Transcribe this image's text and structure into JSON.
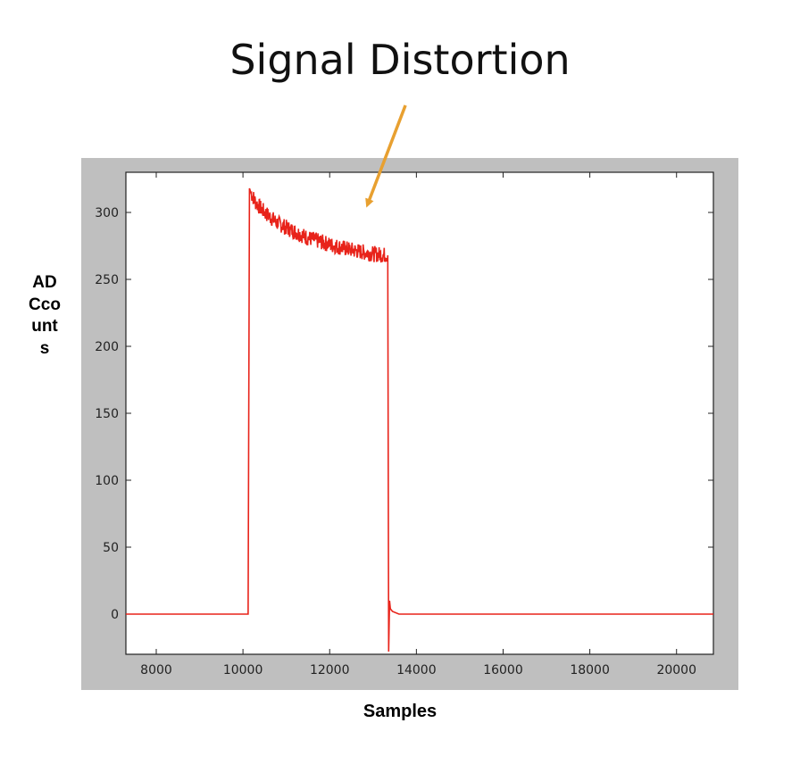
{
  "chart_data": {
    "type": "line",
    "title": "Signal Distortion",
    "xlabel": "Samples",
    "ylabel": "ADCcounts",
    "xlim": [
      7300,
      20850
    ],
    "ylim": [
      -30,
      330
    ],
    "xticks": [
      8000,
      10000,
      12000,
      14000,
      16000,
      18000,
      20000
    ],
    "yticks": [
      0,
      50,
      100,
      150,
      200,
      250,
      300
    ],
    "grid": false,
    "series": [
      {
        "color": "#e8231a",
        "x": [
          7300,
          10120,
          10150,
          10180,
          10300,
          10500,
          10800,
          11100,
          11500,
          12000,
          12500,
          13000,
          13340,
          13360,
          13380,
          13400,
          13450,
          13600,
          14000,
          16000,
          18000,
          20000,
          20850
        ],
        "y": [
          0,
          0,
          318,
          315,
          307,
          300,
          292,
          287,
          281,
          276,
          272,
          269,
          268,
          -28,
          10,
          4,
          2,
          0,
          0,
          0,
          0,
          0,
          0
        ]
      }
    ],
    "annotation": {
      "color": "#e8a030",
      "target_x": 12800,
      "target_y": 300
    }
  }
}
